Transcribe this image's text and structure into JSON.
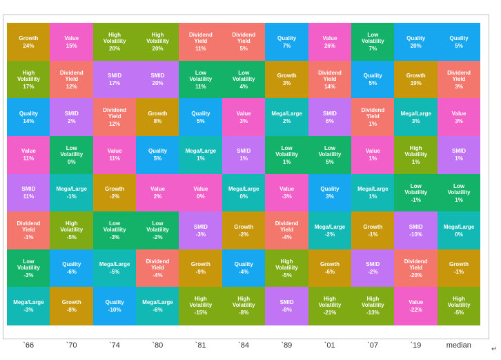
{
  "chart_data": {
    "type": "heatmap",
    "title": "",
    "xlabel": "",
    "ylabel": "",
    "columns": [
      "`66",
      "`70",
      "`74",
      "`80",
      "`81",
      "`84",
      "`89",
      "`01",
      "`07",
      "`19",
      "median"
    ],
    "rows": [
      [
        {
          "label": "Growth",
          "value": "24%"
        },
        {
          "label": "Value",
          "value": "15%"
        },
        {
          "label": "High Volatility",
          "value": "20%"
        },
        {
          "label": "High Volatility",
          "value": "20%"
        },
        {
          "label": "Dividend Yield",
          "value": "11%"
        },
        {
          "label": "Dividend Yield",
          "value": "5%"
        },
        {
          "label": "Quality",
          "value": "7%"
        },
        {
          "label": "Value",
          "value": "26%"
        },
        {
          "label": "Low Volatility",
          "value": "7%"
        },
        {
          "label": "Quality",
          "value": "20%"
        },
        {
          "label": "Quality",
          "value": "5%"
        }
      ],
      [
        {
          "label": "High Volatility",
          "value": "17%"
        },
        {
          "label": "Dividend Yield",
          "value": "12%"
        },
        {
          "label": "SMID",
          "value": "17%"
        },
        {
          "label": "SMID",
          "value": "20%"
        },
        {
          "label": "Low Volatility",
          "value": "11%"
        },
        {
          "label": "Low Volatility",
          "value": "4%"
        },
        {
          "label": "Growth",
          "value": "3%"
        },
        {
          "label": "Dividend Yield",
          "value": "14%"
        },
        {
          "label": "Quality",
          "value": "5%"
        },
        {
          "label": "Growth",
          "value": "19%"
        },
        {
          "label": "Dividend Yield",
          "value": "3%"
        }
      ],
      [
        {
          "label": "Quality",
          "value": "14%"
        },
        {
          "label": "SMID",
          "value": "2%"
        },
        {
          "label": "Dividend Yield",
          "value": "12%"
        },
        {
          "label": "Growth",
          "value": "8%"
        },
        {
          "label": "Quality",
          "value": "5%"
        },
        {
          "label": "Value",
          "value": "3%"
        },
        {
          "label": "Mega/Large",
          "value": "2%"
        },
        {
          "label": "SMID",
          "value": "6%"
        },
        {
          "label": "Dividend Yield",
          "value": "1%"
        },
        {
          "label": "Mega/Large",
          "value": "3%"
        },
        {
          "label": "Value",
          "value": "3%"
        }
      ],
      [
        {
          "label": "Value",
          "value": "11%"
        },
        {
          "label": "Low Volatility",
          "value": "0%"
        },
        {
          "label": "Value",
          "value": "11%"
        },
        {
          "label": "Quality",
          "value": "5%"
        },
        {
          "label": "Mega/Large",
          "value": "1%"
        },
        {
          "label": "SMID",
          "value": "1%"
        },
        {
          "label": "Low Volatility",
          "value": "1%"
        },
        {
          "label": "Low Volatility",
          "value": "5%"
        },
        {
          "label": "Value",
          "value": "1%"
        },
        {
          "label": "High Volatility",
          "value": "1%"
        },
        {
          "label": "SMID",
          "value": "1%"
        }
      ],
      [
        {
          "label": "SMID",
          "value": "11%"
        },
        {
          "label": "Mega/Large",
          "value": "-1%"
        },
        {
          "label": "Growth",
          "value": "-2%"
        },
        {
          "label": "Value",
          "value": "2%"
        },
        {
          "label": "Value",
          "value": "0%"
        },
        {
          "label": "Mega/Large",
          "value": "0%"
        },
        {
          "label": "Value",
          "value": "-3%"
        },
        {
          "label": "Quality",
          "value": "3%"
        },
        {
          "label": "Mega/Large",
          "value": "1%"
        },
        {
          "label": "Low Volatility",
          "value": "-1%"
        },
        {
          "label": "Low Volatility",
          "value": "1%"
        }
      ],
      [
        {
          "label": "Dividend Yield",
          "value": "-1%"
        },
        {
          "label": "High Volatility",
          "value": "-5%"
        },
        {
          "label": "Low Volatility",
          "value": "-3%"
        },
        {
          "label": "Low Volatility",
          "value": "-2%"
        },
        {
          "label": "SMID",
          "value": "-3%"
        },
        {
          "label": "Growth",
          "value": "-2%"
        },
        {
          "label": "Dividend Yield",
          "value": "-4%"
        },
        {
          "label": "Mega/Large",
          "value": "-2%"
        },
        {
          "label": "Growth",
          "value": "-1%"
        },
        {
          "label": "SMID",
          "value": "-10%"
        },
        {
          "label": "Mega/Large",
          "value": "0%"
        }
      ],
      [
        {
          "label": "Low Volatility",
          "value": "-3%"
        },
        {
          "label": "Quality",
          "value": "-6%"
        },
        {
          "label": "Mega/Large",
          "value": "-5%"
        },
        {
          "label": "Dividend Yield",
          "value": "-4%"
        },
        {
          "label": "Growth",
          "value": "-9%"
        },
        {
          "label": "Quality",
          "value": "-4%"
        },
        {
          "label": "High Volatility",
          "value": "-5%"
        },
        {
          "label": "Growth",
          "value": "-6%"
        },
        {
          "label": "SMID",
          "value": "-2%"
        },
        {
          "label": "Dividend Yield",
          "value": "-20%"
        },
        {
          "label": "Growth",
          "value": "-1%"
        }
      ],
      [
        {
          "label": "Mega/Large",
          "value": "-3%"
        },
        {
          "label": "Growth",
          "value": "-8%"
        },
        {
          "label": "Quality",
          "value": "-10%"
        },
        {
          "label": "Mega/Large",
          "value": "-6%"
        },
        {
          "label": "High Volatility",
          "value": "-15%"
        },
        {
          "label": "High Volatility",
          "value": "-8%"
        },
        {
          "label": "SMID",
          "value": "-8%"
        },
        {
          "label": "High Volatility",
          "value": "-21%"
        },
        {
          "label": "High Volatility",
          "value": "-13%"
        },
        {
          "label": "Value",
          "value": "-22%"
        },
        {
          "label": "High Volatility",
          "value": "-5%"
        }
      ]
    ],
    "category_colors": {
      "Growth": "#c8960a",
      "Value": "#f25fc8",
      "High Volatility": "#7faa14",
      "Dividend Yield": "#f4776e",
      "Quality": "#17a7f0",
      "Low Volatility": "#13b268",
      "SMID": "#c175f4",
      "Mega/Large": "#12b8b4"
    }
  },
  "glyphs": {
    "return_mark": "↵"
  }
}
